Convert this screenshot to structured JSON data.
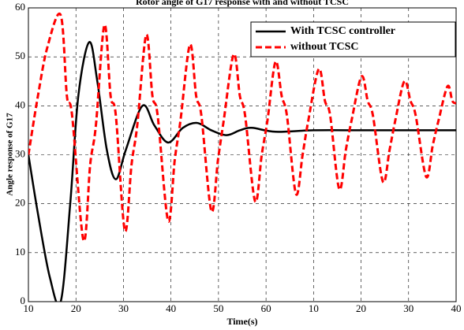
{
  "chart_data": {
    "type": "line",
    "title": "Rotor angle of G17 response with and without TCSC",
    "xlabel": "Time(s)",
    "ylabel": "Angle response of G17",
    "xlim": [
      10,
      100
    ],
    "xticks": [
      10,
      20,
      30,
      40,
      50,
      60,
      {
        "value": 70,
        "label": "10"
      },
      {
        "value": 80,
        "label": "20"
      },
      {
        "value": 90,
        "label": "30"
      },
      {
        "value": 100,
        "label": "40"
      }
    ],
    "ylim": [
      0,
      60
    ],
    "yticks": [
      0,
      10,
      20,
      30,
      40,
      50,
      60
    ],
    "grid": true,
    "legend": "upper right",
    "series": [
      {
        "name": "With TCSC controller",
        "color": "#000000",
        "dash": false,
        "x": [
          10,
          12,
          14.5,
          16.8,
          18.8,
          20.5,
          22.8,
          24.5,
          26.5,
          28.4,
          30.5,
          34,
          36.5,
          39.4,
          42.5,
          45.5,
          48.5,
          51.7,
          54.5,
          57,
          62,
          70,
          80,
          90,
          100
        ],
        "values": [
          30,
          18,
          5,
          0,
          20,
          42,
          53,
          45,
          31,
          25,
          31,
          40,
          36,
          32.5,
          35.5,
          36.5,
          35,
          34,
          35,
          35.5,
          34.7,
          35,
          35,
          35,
          35
        ]
      },
      {
        "name": "without TCSC",
        "color": "#ff0000",
        "dash": true,
        "x": [
          10,
          12,
          14,
          16.8,
          18.1,
          19.2,
          21.6,
          23,
          24.2,
          26,
          27.3,
          28.4,
          30.3,
          31.7,
          32.9,
          34.8,
          36.1,
          37.2,
          39.4,
          40.8,
          42,
          44,
          45.3,
          46.4,
          48.5,
          49.9,
          51.1,
          53.2,
          54.5,
          55.6,
          57.7,
          59.1,
          60.3,
          62,
          63.3,
          64.4,
          66.3,
          67.7,
          68.9,
          71.1,
          72.4,
          73.5,
          75.4,
          76.8,
          78,
          80.1,
          81.4,
          82.5,
          84.6,
          86,
          87.2,
          89.1,
          90.4,
          91.5,
          93.7,
          95.1,
          96.3,
          98.2,
          99.2,
          100
        ],
        "values": [
          30,
          42,
          52,
          58.5,
          42,
          38,
          12.5,
          28,
          36,
          56.5,
          42,
          38,
          14.5,
          28,
          36,
          54.5,
          42,
          38,
          16.5,
          29,
          37,
          52.5,
          42,
          38,
          18.5,
          29,
          37,
          50.5,
          42,
          38,
          20.5,
          30,
          37,
          49,
          42,
          38,
          22,
          30,
          37,
          47.5,
          41,
          38,
          23,
          31,
          37,
          46,
          41,
          38,
          24.5,
          31,
          37,
          45,
          41,
          38,
          25.5,
          32,
          37,
          44,
          41,
          40.5
        ]
      }
    ]
  }
}
